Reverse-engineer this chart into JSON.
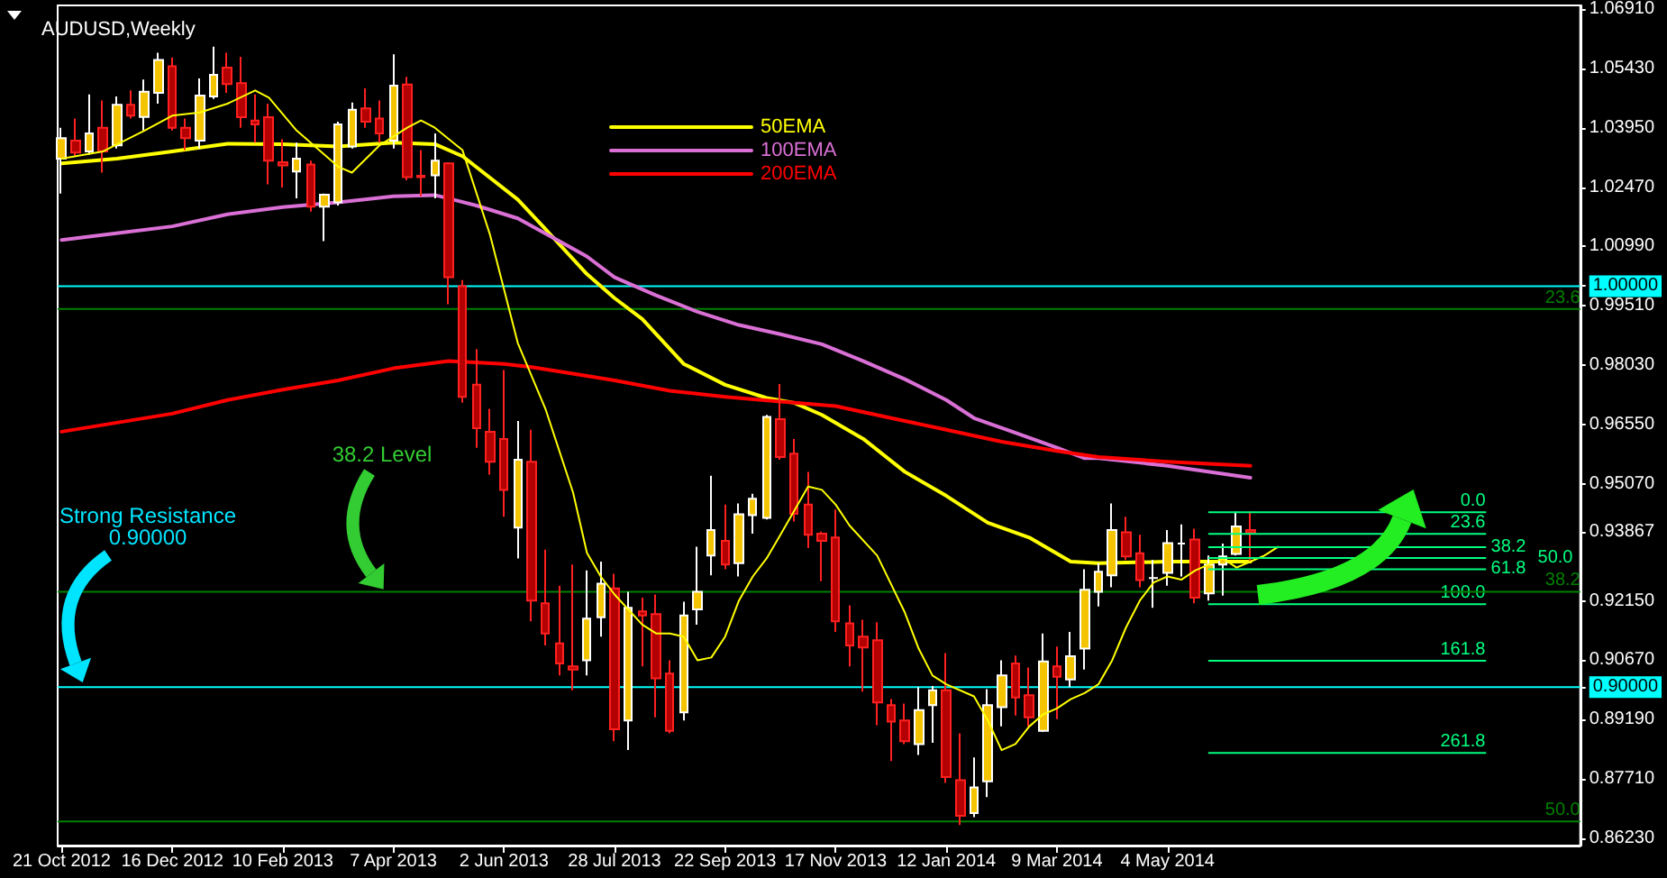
{
  "chart_data": {
    "type": "candlestick",
    "title": "AUDUSD,Weekly",
    "x": [
      "2012-10-21",
      "2012-10-28",
      "2012-11-04",
      "2012-11-11",
      "2012-11-18",
      "2012-11-25",
      "2012-12-02",
      "2012-12-09",
      "2012-12-16",
      "2012-12-23",
      "2012-12-30",
      "2013-01-06",
      "2013-01-13",
      "2013-01-20",
      "2013-01-27",
      "2013-02-03",
      "2013-02-10",
      "2013-02-17",
      "2013-02-24",
      "2013-03-03",
      "2013-03-10",
      "2013-03-17",
      "2013-03-24",
      "2013-03-31",
      "2013-04-07",
      "2013-04-14",
      "2013-04-21",
      "2013-04-28",
      "2013-05-05",
      "2013-05-12",
      "2013-05-19",
      "2013-05-26",
      "2013-06-02",
      "2013-06-09",
      "2013-06-16",
      "2013-06-23",
      "2013-06-30",
      "2013-07-07",
      "2013-07-14",
      "2013-07-21",
      "2013-07-28",
      "2013-08-04",
      "2013-08-11",
      "2013-08-18",
      "2013-08-25",
      "2013-09-01",
      "2013-09-08",
      "2013-09-15",
      "2013-09-22",
      "2013-09-29",
      "2013-10-06",
      "2013-10-13",
      "2013-10-20",
      "2013-10-27",
      "2013-11-03",
      "2013-11-10",
      "2013-11-17",
      "2013-11-24",
      "2013-12-01",
      "2013-12-08",
      "2013-12-15",
      "2013-12-22",
      "2013-12-29",
      "2014-01-05",
      "2014-01-12",
      "2014-01-19",
      "2014-01-26",
      "2014-02-02",
      "2014-02-09",
      "2014-02-16",
      "2014-02-23",
      "2014-03-02",
      "2014-03-09",
      "2014-03-16",
      "2014-03-23",
      "2014-03-30",
      "2014-04-06",
      "2014-04-13",
      "2014-04-20",
      "2014-04-27",
      "2014-05-04",
      "2014-05-11",
      "2014-05-18",
      "2014-05-25",
      "2014-06-01",
      "2014-06-08",
      "2014-06-15"
    ],
    "ohlc": [
      [
        1.0318,
        1.0395,
        1.0231,
        1.0369
      ],
      [
        1.0363,
        1.0418,
        1.0324,
        1.0333
      ],
      [
        1.0336,
        1.0478,
        1.0328,
        1.0381
      ],
      [
        1.0395,
        1.0463,
        1.0283,
        1.0336
      ],
      [
        1.0351,
        1.0473,
        1.0343,
        1.0452
      ],
      [
        1.0452,
        1.0488,
        1.0418,
        1.0425
      ],
      [
        1.0422,
        1.0515,
        1.0388,
        1.0485
      ],
      [
        1.0482,
        1.0582,
        1.0455,
        1.0564
      ],
      [
        1.0548,
        1.057,
        1.0388,
        1.0395
      ],
      [
        1.0395,
        1.0418,
        1.0339,
        1.0369
      ],
      [
        1.0363,
        1.0518,
        1.0343,
        1.0475
      ],
      [
        1.0473,
        1.0597,
        1.0467,
        1.0527
      ],
      [
        1.0545,
        1.0582,
        1.0482,
        1.0504
      ],
      [
        1.0506,
        1.0572,
        1.0395,
        1.0421
      ],
      [
        1.0413,
        1.0478,
        1.0358,
        1.0403
      ],
      [
        1.0421,
        1.0455,
        1.0254,
        1.0313
      ],
      [
        1.0309,
        1.0366,
        1.0246,
        1.0301
      ],
      [
        1.0286,
        1.0358,
        1.0219,
        1.0318
      ],
      [
        1.0303,
        1.0313,
        1.0186,
        1.0198
      ],
      [
        1.0198,
        1.0231,
        1.0112,
        1.0228
      ],
      [
        1.0209,
        1.041,
        1.0201,
        1.0403
      ],
      [
        1.0348,
        1.0458,
        1.0343,
        1.044
      ],
      [
        1.0443,
        1.0493,
        1.0395,
        1.041
      ],
      [
        1.0418,
        1.0463,
        1.0358,
        1.0381
      ],
      [
        1.0363,
        1.0578,
        1.0343,
        1.05
      ],
      [
        1.0503,
        1.0522,
        1.0264,
        1.0272
      ],
      [
        1.0275,
        1.0339,
        1.0224,
        1.0272
      ],
      [
        1.0276,
        1.0381,
        1.0219,
        1.0313
      ],
      [
        1.0306,
        1.0309,
        0.9955,
        1.0022
      ],
      [
        1.0,
        1.0015,
        0.9709,
        0.9724
      ],
      [
        0.9754,
        0.9843,
        0.9597,
        0.9646
      ],
      [
        0.9637,
        0.9694,
        0.953,
        0.9562
      ],
      [
        0.9619,
        0.9791,
        0.9425,
        0.9492
      ],
      [
        0.9398,
        0.9664,
        0.9321,
        0.9567
      ],
      [
        0.9562,
        0.9642,
        0.9164,
        0.9216
      ],
      [
        0.9209,
        0.9343,
        0.9104,
        0.9134
      ],
      [
        0.9109,
        0.9253,
        0.9029,
        0.9059
      ],
      [
        0.9052,
        0.9306,
        0.8992,
        0.9044
      ],
      [
        0.9067,
        0.9291,
        0.9029,
        0.9171
      ],
      [
        0.9174,
        0.9313,
        0.9126,
        0.9258
      ],
      [
        0.9246,
        0.9283,
        0.8865,
        0.8895
      ],
      [
        0.8917,
        0.9238,
        0.8843,
        0.9198
      ],
      [
        0.9189,
        0.9223,
        0.9052,
        0.9179
      ],
      [
        0.9182,
        0.9231,
        0.8925,
        0.9022
      ],
      [
        0.9034,
        0.9067,
        0.8885,
        0.8891
      ],
      [
        0.8937,
        0.9213,
        0.8917,
        0.9179
      ],
      [
        0.9194,
        0.935,
        0.9156,
        0.9238
      ],
      [
        0.9328,
        0.9527,
        0.9279,
        0.9392
      ],
      [
        0.9365,
        0.9455,
        0.9294,
        0.9306
      ],
      [
        0.9309,
        0.9458,
        0.9276,
        0.9431
      ],
      [
        0.9429,
        0.9482,
        0.9383,
        0.947
      ],
      [
        0.9422,
        0.9679,
        0.9418,
        0.9674
      ],
      [
        0.9668,
        0.9756,
        0.9567,
        0.9574
      ],
      [
        0.9582,
        0.9619,
        0.9413,
        0.9432
      ],
      [
        0.9455,
        0.9537,
        0.9347,
        0.938
      ],
      [
        0.9383,
        0.9388,
        0.9264,
        0.9365
      ],
      [
        0.9373,
        0.9443,
        0.9138,
        0.9164
      ],
      [
        0.9159,
        0.9204,
        0.9052,
        0.9104
      ],
      [
        0.9126,
        0.9168,
        0.8989,
        0.9099
      ],
      [
        0.9117,
        0.9162,
        0.8905,
        0.8962
      ],
      [
        0.8955,
        0.897,
        0.8816,
        0.8914
      ],
      [
        0.8917,
        0.8959,
        0.8858,
        0.8865
      ],
      [
        0.8858,
        0.9,
        0.8831,
        0.8943
      ],
      [
        0.8955,
        0.9003,
        0.8861,
        0.8992
      ],
      [
        0.8992,
        0.9085,
        0.8761,
        0.8776
      ],
      [
        0.8768,
        0.8885,
        0.8656,
        0.8679
      ],
      [
        0.8686,
        0.8825,
        0.8676,
        0.875
      ],
      [
        0.8765,
        0.8995,
        0.8726,
        0.8955
      ],
      [
        0.895,
        0.9067,
        0.8902,
        0.9029
      ],
      [
        0.9059,
        0.9079,
        0.8929,
        0.8974
      ],
      [
        0.898,
        0.9049,
        0.8902,
        0.8925
      ],
      [
        0.8891,
        0.9134,
        0.8888,
        0.9064
      ],
      [
        0.9052,
        0.9101,
        0.892,
        0.9026
      ],
      [
        0.9019,
        0.9138,
        0.9,
        0.9077
      ],
      [
        0.9096,
        0.9294,
        0.9044,
        0.9243
      ],
      [
        0.9238,
        0.9309,
        0.9201,
        0.9288
      ],
      [
        0.9279,
        0.9458,
        0.9249,
        0.9392
      ],
      [
        0.9386,
        0.9425,
        0.9317,
        0.9326
      ],
      [
        0.9334,
        0.938,
        0.9249,
        0.9267
      ],
      [
        0.9272,
        0.9317,
        0.9198,
        0.9272
      ],
      [
        0.9285,
        0.9392,
        0.9253,
        0.9359
      ],
      [
        0.9358,
        0.9406,
        0.9276,
        0.9358
      ],
      [
        0.9368,
        0.9395,
        0.9209,
        0.9223
      ],
      [
        0.9234,
        0.9328,
        0.9216,
        0.9306
      ],
      [
        0.9306,
        0.9358,
        0.9228,
        0.9326
      ],
      [
        0.9332,
        0.9437,
        0.9328,
        0.9401
      ],
      [
        0.9392,
        0.9437,
        0.9313,
        0.9386
      ]
    ],
    "series": [
      {
        "type": "line",
        "name": "50EMA",
        "color": "#ffff00",
        "x": [
          "2012-10-21",
          "2012-11-18",
          "2012-12-16",
          "2013-01-13",
          "2013-02-10",
          "2013-03-10",
          "2013-04-07",
          "2013-04-28",
          "2013-05-12",
          "2013-06-09",
          "2013-06-23",
          "2013-07-14",
          "2013-07-28",
          "2013-08-11",
          "2013-09-01",
          "2013-09-22",
          "2013-10-13",
          "2013-10-27",
          "2013-11-10",
          "2013-12-01",
          "2013-12-22",
          "2014-01-12",
          "2014-02-02",
          "2014-02-23",
          "2014-03-16",
          "2014-03-30",
          "2014-05-04",
          "2014-06-15"
        ],
        "values": [
          1.0306,
          1.0318,
          1.0336,
          1.0355,
          1.0354,
          1.0348,
          1.0358,
          1.0354,
          1.0324,
          1.0216,
          1.0142,
          1.003,
          0.997,
          0.9918,
          0.9806,
          0.9754,
          0.9721,
          0.9709,
          0.9679,
          0.9619,
          0.9537,
          0.9477,
          0.941,
          0.9373,
          0.9313,
          0.9309,
          0.9313,
          0.9313
        ]
      },
      {
        "type": "line",
        "name": "100EMA",
        "color": "#da70d6",
        "x": [
          "2012-10-21",
          "2012-12-16",
          "2013-01-13",
          "2013-02-10",
          "2013-03-10",
          "2013-04-07",
          "2013-04-28",
          "2013-05-19",
          "2013-06-09",
          "2013-06-30",
          "2013-07-14",
          "2013-07-28",
          "2013-08-18",
          "2013-09-08",
          "2013-09-29",
          "2013-10-20",
          "2013-11-10",
          "2013-12-01",
          "2013-12-22",
          "2014-01-12",
          "2014-01-26",
          "2014-02-16",
          "2014-03-09",
          "2014-03-23",
          "2014-03-30",
          "2014-05-04",
          "2014-06-15"
        ],
        "values": [
          1.0115,
          1.0149,
          1.0179,
          1.0197,
          1.0209,
          1.0224,
          1.0227,
          1.0201,
          1.0169,
          1.0112,
          1.0074,
          1.0022,
          0.9977,
          0.9936,
          0.9903,
          0.988,
          0.9855,
          0.9813,
          0.9768,
          0.9716,
          0.9671,
          0.9634,
          0.9597,
          0.9571,
          0.9571,
          0.9552,
          0.9522
        ]
      },
      {
        "type": "line",
        "name": "200EMA",
        "color": "#ff0000",
        "x": [
          "2012-10-21",
          "2012-12-16",
          "2013-01-13",
          "2013-02-10",
          "2013-03-10",
          "2013-04-07",
          "2013-05-05",
          "2013-06-02",
          "2013-06-16",
          "2013-07-14",
          "2013-07-28",
          "2013-08-25",
          "2013-09-22",
          "2013-10-20",
          "2013-11-17",
          "2013-12-15",
          "2014-01-12",
          "2014-02-09",
          "2014-03-09",
          "2014-03-30",
          "2014-05-04",
          "2014-06-15"
        ],
        "values": [
          0.9637,
          0.9682,
          0.9716,
          0.9742,
          0.9765,
          0.9795,
          0.9813,
          0.9806,
          0.9798,
          0.9776,
          0.9765,
          0.9739,
          0.9724,
          0.9712,
          0.9701,
          0.9671,
          0.9642,
          0.9612,
          0.9589,
          0.9574,
          0.9562,
          0.9552
        ]
      },
      {
        "type": "line",
        "color": "#ffff00",
        "x": [
          "2012-10-21",
          "2012-11-11",
          "2012-12-02",
          "2012-12-16",
          "2012-12-30",
          "2013-01-13",
          "2013-01-27",
          "2013-02-03",
          "2013-02-17",
          "2013-03-10",
          "2013-03-17",
          "2013-03-31",
          "2013-04-14",
          "2013-04-21",
          "2013-04-28",
          "2013-05-12",
          "2013-05-26",
          "2013-06-09",
          "2013-06-23",
          "2013-07-07",
          "2013-07-14",
          "2013-07-21",
          "2013-07-28",
          "2013-08-11",
          "2013-08-18",
          "2013-08-25",
          "2013-09-01",
          "2013-09-08",
          "2013-09-15",
          "2013-09-22",
          "2013-09-29",
          "2013-10-06",
          "2013-10-13",
          "2013-10-20",
          "2013-10-27",
          "2013-11-03",
          "2013-11-10",
          "2013-11-17",
          "2013-11-24",
          "2013-12-08",
          "2013-12-22",
          "2013-12-29",
          "2014-01-05",
          "2014-01-12",
          "2014-01-26",
          "2014-02-02",
          "2014-02-09",
          "2014-02-16",
          "2014-02-23",
          "2014-03-02",
          "2014-03-09",
          "2014-03-16",
          "2014-03-23",
          "2014-03-30",
          "2014-04-06",
          "2014-04-13",
          "2014-04-20",
          "2014-04-27",
          "2014-05-04",
          "2014-05-11",
          "2014-05-18",
          "2014-05-25",
          "2014-06-01",
          "2014-06-08",
          "2014-06-15",
          "2014-06-22",
          "2014-06-29"
        ],
        "values": [
          1.0318,
          1.0336,
          1.0388,
          1.0425,
          1.0433,
          1.0455,
          1.0488,
          1.047,
          1.0388,
          1.0298,
          1.0283,
          1.0351,
          1.0395,
          1.0413,
          1.0395,
          1.0339,
          1.0127,
          0.9858,
          0.9694,
          0.9485,
          0.9335,
          0.9276,
          0.9231,
          0.9156,
          0.9134,
          0.9134,
          0.9126,
          0.9067,
          0.9074,
          0.9126,
          0.9216,
          0.9276,
          0.9321,
          0.938,
          0.944,
          0.95,
          0.9492,
          0.9455,
          0.9403,
          0.9328,
          0.9186,
          0.9096,
          0.9029,
          0.9007,
          0.8977,
          0.8917,
          0.8843,
          0.8858,
          0.8902,
          0.8932,
          0.8947,
          0.897,
          0.8985,
          0.9007,
          0.9067,
          0.9149,
          0.9216,
          0.9261,
          0.9276,
          0.9268,
          0.9291,
          0.9306,
          0.9321,
          0.9298,
          0.9313,
          0.9328,
          0.935
        ]
      },
      {
        "type": "line",
        "color": "#00ff80",
        "x": [
          "2014-05-25",
          "2014-10-12"
        ],
        "values": [
          0.9436,
          0.9436
        ]
      },
      {
        "type": "line",
        "color": "#00ff80",
        "x": [
          "2014-05-25",
          "2014-10-12"
        ],
        "values": [
          0.9382,
          0.9382
        ]
      },
      {
        "type": "line",
        "color": "#00ff80",
        "x": [
          "2014-05-25",
          "2014-10-12"
        ],
        "values": [
          0.9349,
          0.9349
        ]
      },
      {
        "type": "line",
        "color": "#00ff80",
        "x": [
          "2014-05-25",
          "2014-10-12"
        ],
        "values": [
          0.9322,
          0.9322
        ]
      },
      {
        "type": "line",
        "color": "#00ff80",
        "x": [
          "2014-05-25",
          "2014-10-12"
        ],
        "values": [
          0.9294,
          0.9294
        ]
      },
      {
        "type": "line",
        "color": "#00ff80",
        "x": [
          "2014-05-25",
          "2014-10-12"
        ],
        "values": [
          0.9207,
          0.9207
        ]
      },
      {
        "type": "line",
        "color": "#00ff80",
        "x": [
          "2014-05-25",
          "2014-10-12"
        ],
        "values": [
          0.9066,
          0.9066
        ]
      },
      {
        "type": "line",
        "color": "#00ff80",
        "x": [
          "2014-05-25",
          "2014-10-12"
        ],
        "values": [
          0.8836,
          0.8836
        ]
      }
    ],
    "annotations": [
      "Strong Resistance\n0.90000",
      "38.2 Level",
      {
        "text": "0.0",
        "x": "2014-10-12",
        "y": 0.9436
      },
      {
        "text": "23.6",
        "x": "2014-10-12",
        "y": 0.9382
      },
      {
        "text": "38.2",
        "x": "2014-10-12",
        "y": 0.9349
      },
      {
        "text": "50.0",
        "x": "2014-10-12",
        "y": 0.9322
      },
      {
        "text": "61.8",
        "x": "2014-10-12",
        "y": 0.9294
      },
      {
        "text": "100.0",
        "x": "2014-10-12",
        "y": 0.9207
      },
      {
        "text": "161.8",
        "x": "2014-10-12",
        "y": 0.9066
      },
      {
        "text": "261.8",
        "x": "2014-10-12",
        "y": 0.8836
      },
      {
        "text": "23.6",
        "x": "2014-11-29",
        "y": 0.9943
      },
      {
        "text": "38.2",
        "x": "2014-11-29",
        "y": 0.9238
      },
      {
        "text": "50.0",
        "x": "2014-11-29",
        "y": 0.8665
      }
    ],
    "ref_lines": [
      {
        "axis": "y",
        "value": 1.0,
        "color": "#00ffff"
      },
      {
        "axis": "y",
        "value": 0.9,
        "color": "#00ffff"
      },
      {
        "axis": "y",
        "value": 0.9943,
        "color": "#008000"
      },
      {
        "axis": "y",
        "value": 0.9238,
        "color": "#008000"
      },
      {
        "axis": "y",
        "value": 0.8665,
        "color": "#008000"
      }
    ],
    "xlim": [
      "2012-10-19",
      "2014-11-29"
    ],
    "xticks": [
      {
        "value": "2012-10-21",
        "label": "21 Oct 2012"
      },
      {
        "value": "2012-12-16",
        "label": "16 Dec 2012"
      },
      {
        "value": "2013-02-10",
        "label": "10 Feb 2013"
      },
      {
        "value": "2013-04-07",
        "label": "7 Apr 2013"
      },
      {
        "value": "2013-06-02",
        "label": "2 Jun 2013"
      },
      {
        "value": "2013-07-28",
        "label": "28 Jul 2013"
      },
      {
        "value": "2013-09-22",
        "label": "22 Sep 2013"
      },
      {
        "value": "2013-11-17",
        "label": "17 Nov 2013"
      },
      {
        "value": "2014-01-12",
        "label": "12 Jan 2014"
      },
      {
        "value": "2014-03-09",
        "label": "9 Mar 2014"
      },
      {
        "value": "2014-05-04",
        "label": "4 May 2014"
      }
    ],
    "ylim": [
      0.8605,
      1.07
    ],
    "yticks": [
      {
        "value": 1.0691,
        "label": "1.06910"
      },
      {
        "value": 1.0543,
        "label": "1.05430"
      },
      {
        "value": 1.0395,
        "label": "1.03950"
      },
      {
        "value": 1.0247,
        "label": "1.02470"
      },
      {
        "value": 1.0099,
        "label": "1.00990"
      },
      {
        "value": 1.0,
        "label": "1.00000"
      },
      {
        "value": 0.9951,
        "label": "0.99510"
      },
      {
        "value": 0.9803,
        "label": "0.98030"
      },
      {
        "value": 0.9655,
        "label": "0.96550"
      },
      {
        "value": 0.9507,
        "label": "0.95070"
      },
      {
        "value": 0.93867,
        "label": "0.93867"
      },
      {
        "value": 0.9215,
        "label": "0.92150"
      },
      {
        "value": 0.9067,
        "label": "0.90670"
      },
      {
        "value": 0.9,
        "label": "0.90000"
      },
      {
        "value": 0.8919,
        "label": "0.89190"
      },
      {
        "value": 0.8771,
        "label": "0.87710"
      },
      {
        "value": 0.8623,
        "label": "0.86230"
      }
    ],
    "legend": "top"
  }
}
